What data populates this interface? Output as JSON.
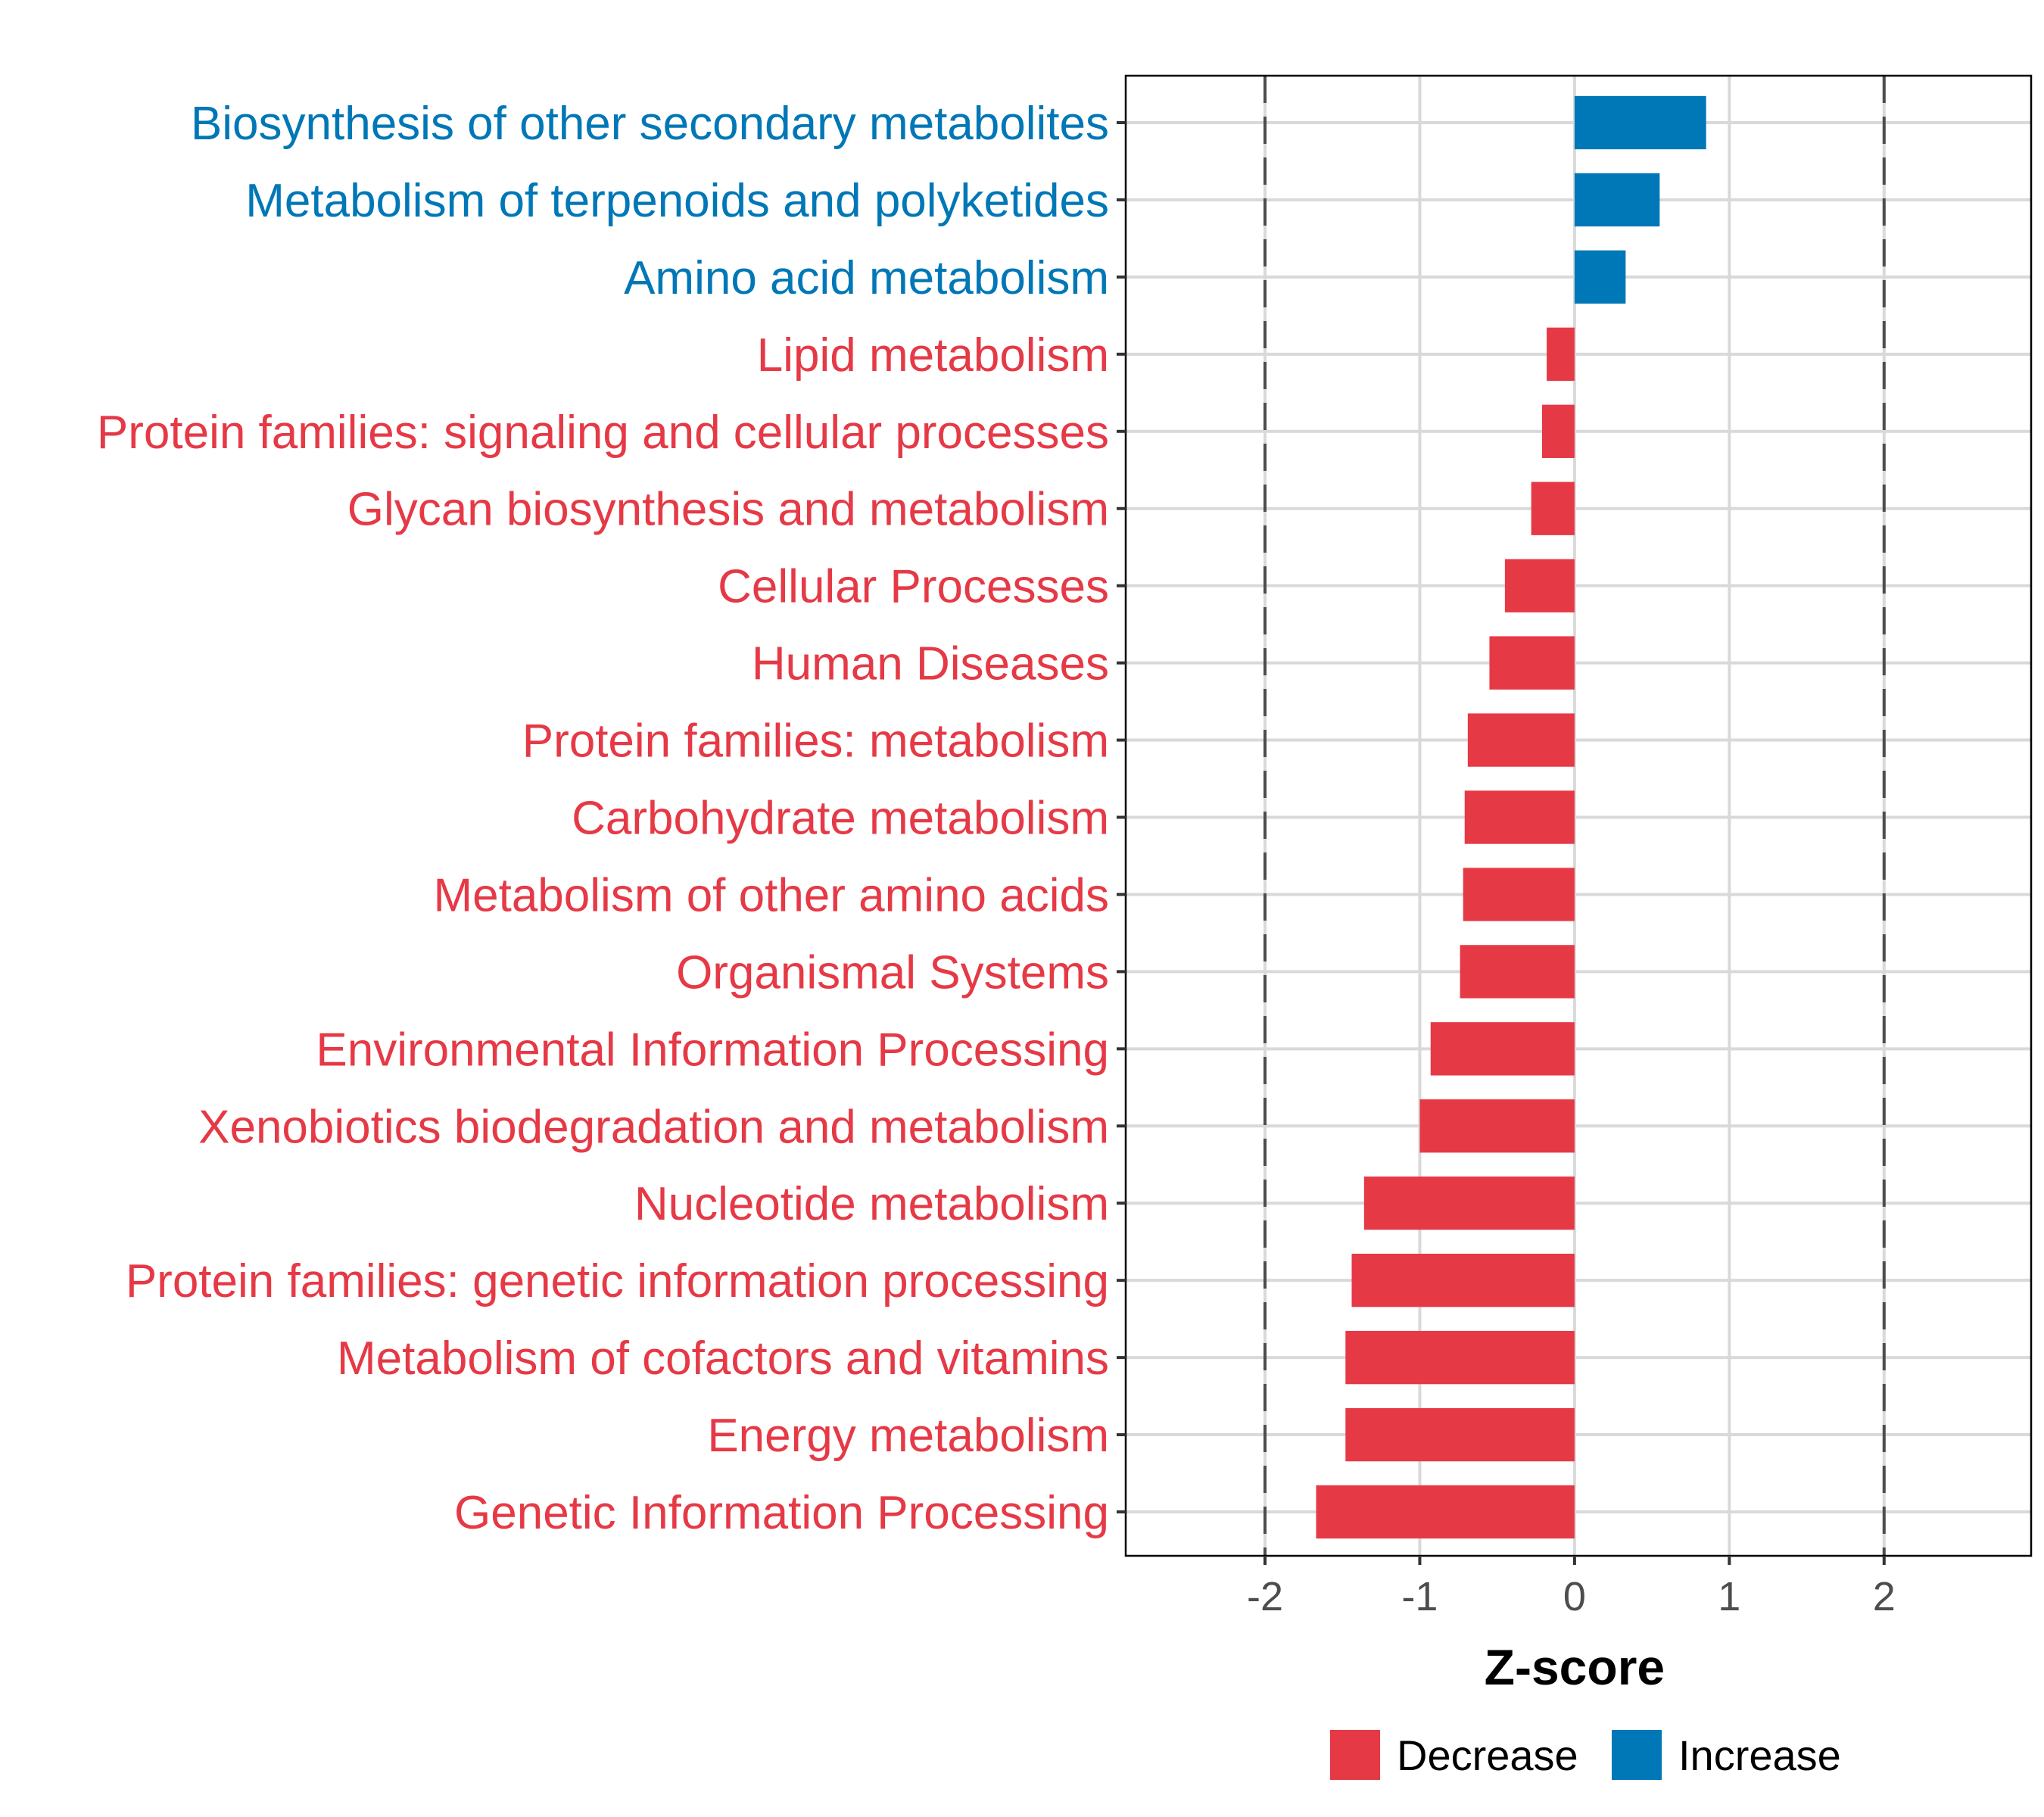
{
  "chart_data": {
    "type": "bar",
    "orientation": "horizontal",
    "title": "",
    "xlabel": "Z-score",
    "ylabel": "",
    "xlim": [
      -2.9,
      2.95
    ],
    "xticks": [
      -2,
      -1,
      0,
      1,
      2
    ],
    "xtick_labels": [
      "-2",
      "-1",
      "0",
      "1",
      "2"
    ],
    "reference_lines": [
      -2,
      2
    ],
    "grid": true,
    "legend_position": "bottom",
    "categories": [
      "Biosynthesis of other secondary metabolites",
      "Metabolism of terpenoids and polyketides",
      "Amino acid metabolism",
      "Lipid metabolism",
      "Protein families: signaling and cellular processes",
      "Glycan biosynthesis and metabolism",
      "Cellular Processes",
      "Human Diseases",
      "Protein families: metabolism",
      "Carbohydrate metabolism",
      "Metabolism of other amino acids",
      "Organismal Systems",
      "Environmental Information Processing",
      "Xenobiotics biodegradation and metabolism",
      "Nucleotide metabolism",
      "Protein families: genetic information processing",
      "Metabolism of cofactors and vitamins",
      "Energy metabolism",
      "Genetic Information Processing"
    ],
    "values": [
      0.85,
      0.55,
      0.33,
      -0.18,
      -0.21,
      -0.28,
      -0.45,
      -0.55,
      -0.69,
      -0.71,
      -0.72,
      -0.74,
      -0.93,
      -1.0,
      -1.36,
      -1.44,
      -1.48,
      -1.48,
      -1.67
    ],
    "groups": [
      "Increase",
      "Increase",
      "Increase",
      "Decrease",
      "Decrease",
      "Decrease",
      "Decrease",
      "Decrease",
      "Decrease",
      "Decrease",
      "Decrease",
      "Decrease",
      "Decrease",
      "Decrease",
      "Decrease",
      "Decrease",
      "Decrease",
      "Decrease",
      "Decrease"
    ],
    "legend": [
      {
        "label": "Decrease",
        "color": "#E63946"
      },
      {
        "label": "Increase",
        "color": "#0077B6"
      }
    ]
  },
  "colors": {
    "Decrease": "#E63946",
    "Increase": "#0077B6",
    "grid": "#D9D9D9",
    "reference_line": "#4D4D4D",
    "tick_text": "#4D4D4D"
  }
}
